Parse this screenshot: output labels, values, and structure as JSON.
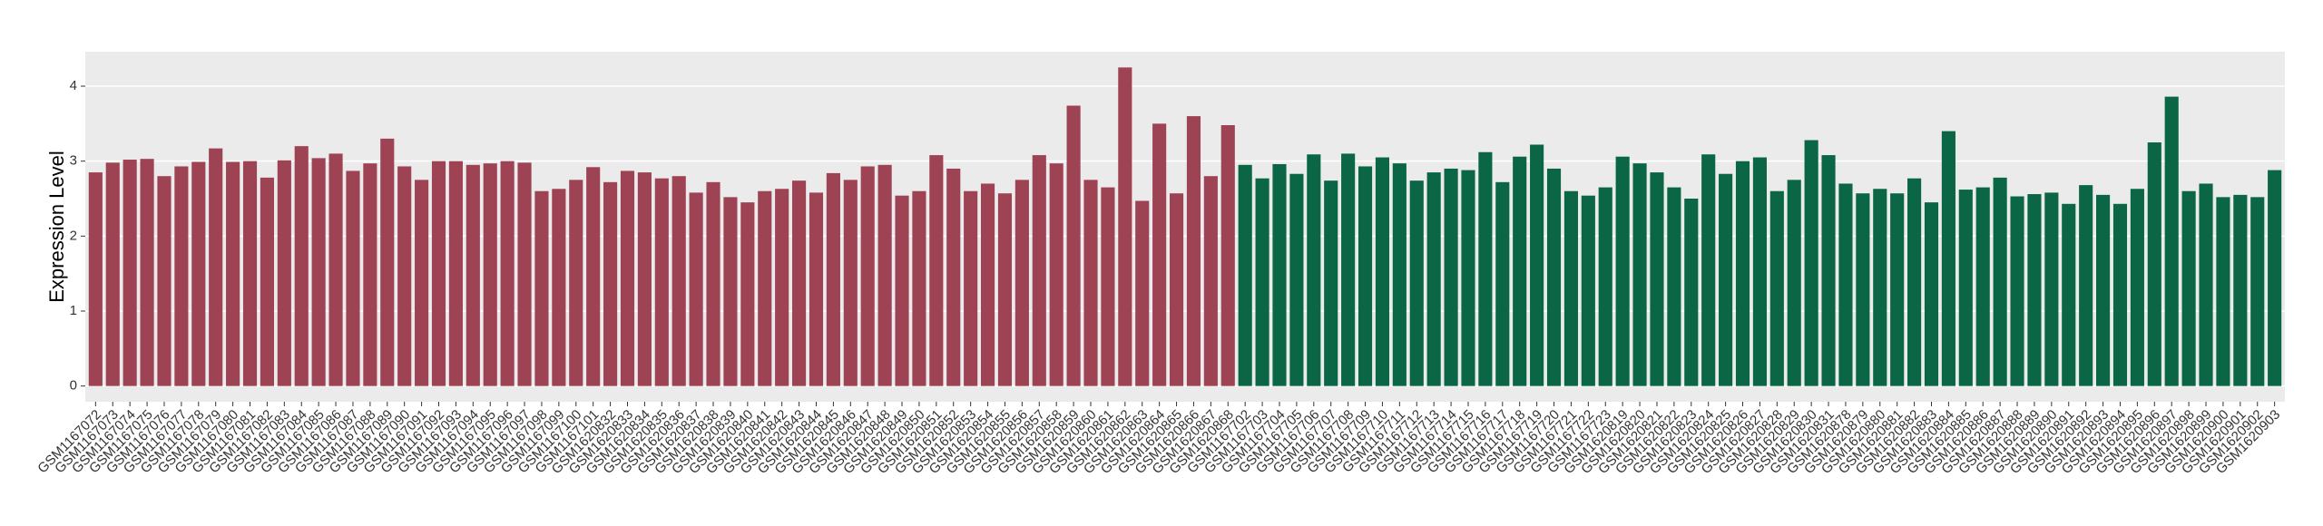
{
  "chart_data": {
    "type": "bar",
    "y_label": "Expression Level",
    "ylim": [
      -0.21,
      4.46
    ],
    "yticks": [
      0,
      1,
      2,
      3,
      4
    ],
    "grid": true,
    "series": [
      {
        "color": "#9e4353",
        "categories": [
          "GSM1167072",
          "GSM1167073",
          "GSM1167074",
          "GSM1167075",
          "GSM1167076",
          "GSM1167077",
          "GSM1167078",
          "GSM1167079",
          "GSM1167080",
          "GSM1167081",
          "GSM1167082",
          "GSM1167083",
          "GSM1167084",
          "GSM1167085",
          "GSM1167086",
          "GSM1167087",
          "GSM1167088",
          "GSM1167089",
          "GSM1167090",
          "GSM1167091",
          "GSM1167092",
          "GSM1167093",
          "GSM1167094",
          "GSM1167095",
          "GSM1167096",
          "GSM1167097",
          "GSM1167098",
          "GSM1167099",
          "GSM1167100",
          "GSM1167101",
          "GSM1620832",
          "GSM1620833",
          "GSM1620834",
          "GSM1620835",
          "GSM1620836",
          "GSM1620837",
          "GSM1620838",
          "GSM1620839",
          "GSM1620840",
          "GSM1620841",
          "GSM1620842",
          "GSM1620843",
          "GSM1620844",
          "GSM1620845",
          "GSM1620846",
          "GSM1620847",
          "GSM1620848",
          "GSM1620849",
          "GSM1620850",
          "GSM1620851",
          "GSM1620852",
          "GSM1620853",
          "GSM1620854",
          "GSM1620855",
          "GSM1620856",
          "GSM1620857",
          "GSM1620858",
          "GSM1620859",
          "GSM1620860",
          "GSM1620861",
          "GSM1620862",
          "GSM1620863",
          "GSM1620864",
          "GSM1620865",
          "GSM1620866",
          "GSM1620867",
          "GSM1620868"
        ],
        "values": [
          2.85,
          2.98,
          3.02,
          3.03,
          2.8,
          2.93,
          2.99,
          3.17,
          2.99,
          3.0,
          2.78,
          3.01,
          3.2,
          3.04,
          3.1,
          2.87,
          2.97,
          3.3,
          2.93,
          2.75,
          3.0,
          3.0,
          2.95,
          2.97,
          3.0,
          2.98,
          2.6,
          2.63,
          2.75,
          2.92,
          2.72,
          2.87,
          2.85,
          2.77,
          2.8,
          2.58,
          2.72,
          2.52,
          2.45,
          2.6,
          2.63,
          2.74,
          2.58,
          2.84,
          2.75,
          2.93,
          2.95,
          2.54,
          2.6,
          3.08,
          2.9,
          2.6,
          2.7,
          2.57,
          2.75,
          3.08,
          2.97,
          3.74,
          2.75,
          2.65,
          4.25,
          2.47,
          3.5,
          2.57,
          3.6,
          2.8,
          3.48
        ]
      },
      {
        "color": "#0a6645",
        "categories": [
          "GSM1167702",
          "GSM1167703",
          "GSM1167704",
          "GSM1167705",
          "GSM1167706",
          "GSM1167707",
          "GSM1167708",
          "GSM1167709",
          "GSM1167710",
          "GSM1167711",
          "GSM1167712",
          "GSM1167713",
          "GSM1167714",
          "GSM1167715",
          "GSM1167716",
          "GSM1167717",
          "GSM1167718",
          "GSM1167719",
          "GSM1167720",
          "GSM1167721",
          "GSM1167722",
          "GSM1167723",
          "GSM1620819",
          "GSM1620820",
          "GSM1620821",
          "GSM1620822",
          "GSM1620823",
          "GSM1620824",
          "GSM1620825",
          "GSM1620826",
          "GSM1620827",
          "GSM1620828",
          "GSM1620829",
          "GSM1620830",
          "GSM1620831",
          "GSM1620878",
          "GSM1620879",
          "GSM1620880",
          "GSM1620881",
          "GSM1620882",
          "GSM1620883",
          "GSM1620884",
          "GSM1620885",
          "GSM1620886",
          "GSM1620887",
          "GSM1620888",
          "GSM1620889",
          "GSM1620890",
          "GSM1620891",
          "GSM1620892",
          "GSM1620893",
          "GSM1620894",
          "GSM1620895",
          "GSM1620896",
          "GSM1620897",
          "GSM1620898",
          "GSM1620899",
          "GSM1620900",
          "GSM1620901",
          "GSM1620902",
          "GSM1620903"
        ],
        "values": [
          2.95,
          2.77,
          2.96,
          2.83,
          3.09,
          2.74,
          3.1,
          2.93,
          3.05,
          2.97,
          2.74,
          2.85,
          2.9,
          2.88,
          3.12,
          2.72,
          3.06,
          3.22,
          2.9,
          2.6,
          2.54,
          2.65,
          3.06,
          2.97,
          2.85,
          2.65,
          2.5,
          3.09,
          2.83,
          3.0,
          3.05,
          2.6,
          2.75,
          3.28,
          3.08,
          2.7,
          2.57,
          2.63,
          2.57,
          2.77,
          2.45,
          3.4,
          2.62,
          2.65,
          2.78,
          2.53,
          2.56,
          2.58,
          2.43,
          2.68,
          2.55,
          2.43,
          2.63,
          3.25,
          3.86,
          2.6,
          2.7,
          2.52,
          2.55,
          2.52,
          2.88
        ]
      }
    ]
  }
}
